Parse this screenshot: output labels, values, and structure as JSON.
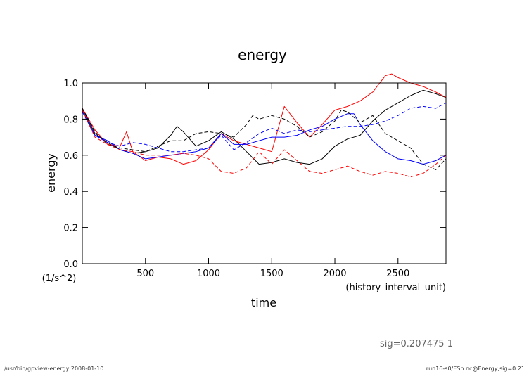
{
  "chart_data": {
    "type": "line",
    "title": "energy",
    "xlabel": "time",
    "ylabel": "energy",
    "x_units": "(history_interval_unit)",
    "y_units": "(1/s^2)",
    "xlim": [
      0,
      2880
    ],
    "ylim": [
      0,
      1.0
    ],
    "xticks": [
      500,
      1000,
      1500,
      2000,
      2500
    ],
    "xtick_labels": [
      "500",
      "1000",
      "1500",
      "2000",
      "2500"
    ],
    "yticks": [
      0,
      0.2,
      0.4,
      0.6,
      0.8,
      1.0
    ],
    "ytick_labels": [
      "0.0",
      "0.2",
      "0.4",
      "0.6",
      "0.8",
      "1.0"
    ],
    "grid": false,
    "series": [
      {
        "name": "series-1-black-solid",
        "color": "#000000",
        "dash": "solid",
        "x": [
          0,
          100,
          200,
          300,
          400,
          500,
          600,
          700,
          750,
          800,
          900,
          1000,
          1100,
          1200,
          1300,
          1400,
          1500,
          1600,
          1700,
          1800,
          1900,
          2000,
          2100,
          2200,
          2300,
          2400,
          2500,
          2600,
          2700,
          2800,
          2880
        ],
        "values": [
          0.86,
          0.72,
          0.67,
          0.63,
          0.61,
          0.62,
          0.64,
          0.71,
          0.76,
          0.73,
          0.65,
          0.68,
          0.73,
          0.69,
          0.62,
          0.55,
          0.56,
          0.58,
          0.56,
          0.55,
          0.58,
          0.65,
          0.69,
          0.71,
          0.79,
          0.85,
          0.89,
          0.93,
          0.96,
          0.94,
          0.92
        ]
      },
      {
        "name": "series-2-red-solid",
        "color": "#ff0000",
        "dash": "solid",
        "x": [
          0,
          100,
          200,
          300,
          350,
          400,
          500,
          600,
          700,
          800,
          900,
          1000,
          1100,
          1200,
          1300,
          1400,
          1500,
          1600,
          1700,
          1800,
          1900,
          2000,
          2100,
          2200,
          2300,
          2400,
          2450,
          2500,
          2600,
          2700,
          2800,
          2880
        ],
        "values": [
          0.86,
          0.74,
          0.66,
          0.65,
          0.73,
          0.62,
          0.57,
          0.59,
          0.58,
          0.55,
          0.57,
          0.63,
          0.72,
          0.68,
          0.66,
          0.64,
          0.62,
          0.87,
          0.78,
          0.7,
          0.77,
          0.85,
          0.87,
          0.9,
          0.95,
          1.04,
          1.05,
          1.03,
          1.0,
          0.98,
          0.95,
          0.92
        ]
      },
      {
        "name": "series-3-blue-solid",
        "color": "#0000ff",
        "dash": "solid",
        "x": [
          0,
          100,
          200,
          300,
          400,
          500,
          600,
          700,
          800,
          900,
          1000,
          1100,
          1200,
          1300,
          1400,
          1500,
          1600,
          1700,
          1800,
          1900,
          2000,
          2100,
          2150,
          2200,
          2300,
          2400,
          2500,
          2600,
          2700,
          2800,
          2880
        ],
        "values": [
          0.85,
          0.71,
          0.68,
          0.63,
          0.61,
          0.58,
          0.59,
          0.6,
          0.61,
          0.62,
          0.64,
          0.72,
          0.66,
          0.66,
          0.68,
          0.7,
          0.7,
          0.71,
          0.74,
          0.76,
          0.8,
          0.83,
          0.83,
          0.77,
          0.68,
          0.62,
          0.58,
          0.57,
          0.55,
          0.57,
          0.6
        ]
      },
      {
        "name": "series-4-black-dashed",
        "color": "#000000",
        "dash": "dashed",
        "x": [
          0,
          100,
          200,
          300,
          400,
          500,
          600,
          700,
          800,
          900,
          1000,
          1100,
          1200,
          1300,
          1350,
          1400,
          1500,
          1600,
          1700,
          1800,
          1900,
          2000,
          2050,
          2100,
          2200,
          2300,
          2400,
          2500,
          2600,
          2700,
          2800,
          2880
        ],
        "values": [
          0.86,
          0.73,
          0.66,
          0.64,
          0.63,
          0.62,
          0.65,
          0.68,
          0.68,
          0.72,
          0.73,
          0.72,
          0.7,
          0.77,
          0.82,
          0.8,
          0.82,
          0.8,
          0.76,
          0.7,
          0.73,
          0.79,
          0.85,
          0.84,
          0.78,
          0.82,
          0.72,
          0.68,
          0.64,
          0.55,
          0.52,
          0.58
        ]
      },
      {
        "name": "series-5-red-dashed",
        "color": "#ff0000",
        "dash": "dashed",
        "x": [
          0,
          100,
          200,
          300,
          400,
          500,
          600,
          700,
          800,
          900,
          1000,
          1100,
          1200,
          1300,
          1400,
          1500,
          1600,
          1700,
          1800,
          1900,
          2000,
          2100,
          2200,
          2300,
          2400,
          2500,
          2600,
          2700,
          2800,
          2880
        ],
        "values": [
          0.85,
          0.7,
          0.66,
          0.63,
          0.62,
          0.6,
          0.6,
          0.6,
          0.61,
          0.6,
          0.58,
          0.51,
          0.5,
          0.53,
          0.62,
          0.55,
          0.63,
          0.57,
          0.51,
          0.5,
          0.52,
          0.54,
          0.51,
          0.49,
          0.51,
          0.5,
          0.48,
          0.5,
          0.55,
          0.6
        ]
      },
      {
        "name": "series-6-blue-dashed",
        "color": "#0000ff",
        "dash": "dashed",
        "x": [
          0,
          100,
          200,
          300,
          400,
          500,
          600,
          700,
          800,
          900,
          1000,
          1100,
          1200,
          1300,
          1400,
          1500,
          1600,
          1700,
          1800,
          1900,
          2000,
          2100,
          2200,
          2300,
          2400,
          2500,
          2600,
          2700,
          2800,
          2880
        ],
        "values": [
          0.84,
          0.71,
          0.67,
          0.65,
          0.67,
          0.66,
          0.64,
          0.62,
          0.62,
          0.63,
          0.64,
          0.71,
          0.63,
          0.67,
          0.72,
          0.75,
          0.72,
          0.74,
          0.73,
          0.74,
          0.75,
          0.76,
          0.76,
          0.77,
          0.79,
          0.82,
          0.86,
          0.87,
          0.86,
          0.89
        ]
      }
    ]
  },
  "footer": {
    "sig_label": "sig=0.207475  1",
    "left_note": "/usr/bin/gpview-energy  2008-01-10",
    "right_note": "run16-s0/ESp.nc@Energy,sig=0.21"
  }
}
